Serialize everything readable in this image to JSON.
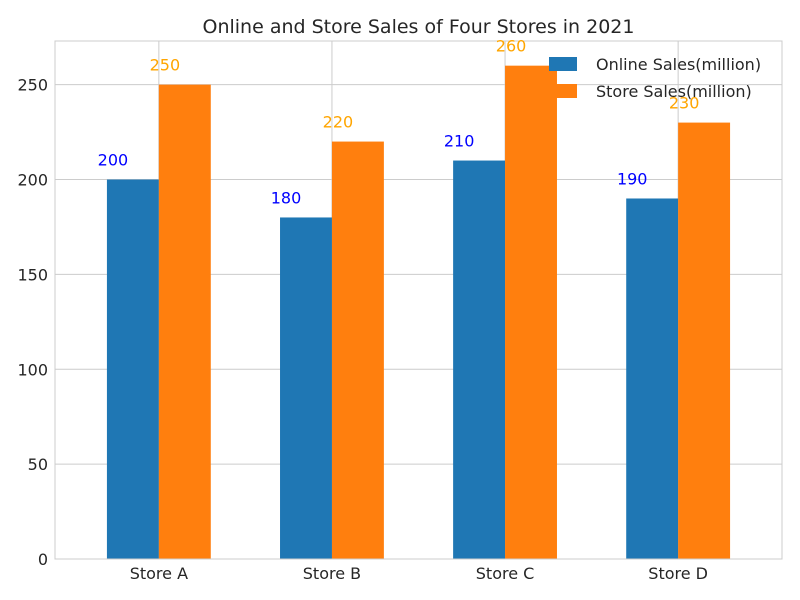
{
  "chart_data": {
    "type": "bar",
    "title": "Online and Store Sales of Four Stores in 2021",
    "xlabel": "",
    "ylabel": "",
    "categories": [
      "Store A",
      "Store B",
      "Store C",
      "Store D"
    ],
    "series": [
      {
        "name": "Online Sales(million)",
        "values": [
          200,
          180,
          210,
          190
        ],
        "color": "#1f77b4",
        "label_color": "#0000ff"
      },
      {
        "name": "Store Sales(million)",
        "values": [
          250,
          220,
          260,
          230
        ],
        "color": "#ff7f0e",
        "label_color": "#ffa500"
      }
    ],
    "ylim": [
      0,
      273
    ],
    "yticks": [
      0,
      50,
      100,
      150,
      200,
      250
    ],
    "grid": true,
    "legend_position": "top-right"
  }
}
